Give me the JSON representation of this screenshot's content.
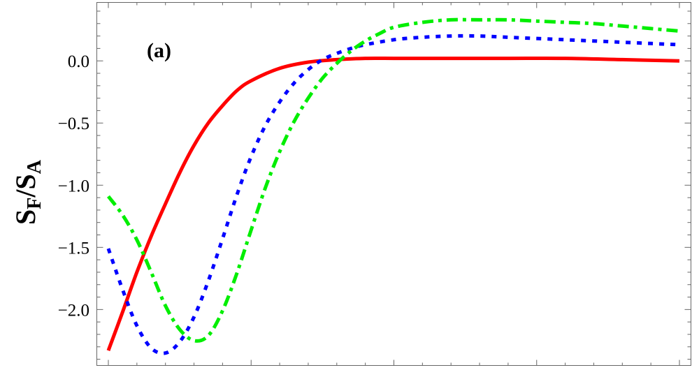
{
  "chart_data": {
    "type": "line",
    "panel_label": "(a)",
    "ylabel": {
      "main_1": "S",
      "sub_1": "F",
      "slash": "/",
      "main_2": "S",
      "sub_2": "A"
    },
    "xlabel": "",
    "xlim": [
      0,
      1
    ],
    "ylim": [
      -2.45,
      0.47
    ],
    "y_ticks": [
      0.0,
      -0.5,
      -1.0,
      -1.5,
      -2.0
    ],
    "y_tick_labels": [
      "0.0",
      "−0.5",
      "−1.0",
      "−1.5",
      "−2.0"
    ],
    "x_major_ticks": [
      0,
      0.25,
      0.5,
      0.75,
      1.0
    ],
    "x_minor_ticks": [
      0.05,
      0.1,
      0.15,
      0.2,
      0.3,
      0.35,
      0.4,
      0.45,
      0.55,
      0.6,
      0.65,
      0.7,
      0.8,
      0.85,
      0.9,
      0.95
    ],
    "grid": false,
    "legend": "none",
    "series": [
      {
        "color": "#ff0000",
        "style": "solid",
        "x": [
          0,
          0.025,
          0.05,
          0.075,
          0.1,
          0.125,
          0.15,
          0.175,
          0.2,
          0.225,
          0.25,
          0.3,
          0.35,
          0.4,
          0.45,
          0.5,
          0.55,
          0.6,
          0.7,
          0.8,
          0.9,
          1.0
        ],
        "y": [
          -2.33,
          -2.02,
          -1.7,
          -1.41,
          -1.15,
          -0.9,
          -0.68,
          -0.5,
          -0.36,
          -0.24,
          -0.16,
          -0.06,
          -0.01,
          0.01,
          0.02,
          0.02,
          0.02,
          0.02,
          0.02,
          0.02,
          0.01,
          0.0
        ]
      },
      {
        "color": "#0000ff",
        "style": "dotted",
        "x": [
          0,
          0.025,
          0.05,
          0.075,
          0.1,
          0.125,
          0.15,
          0.175,
          0.2,
          0.225,
          0.25,
          0.275,
          0.3,
          0.325,
          0.35,
          0.375,
          0.4,
          0.425,
          0.45,
          0.5,
          0.55,
          0.6,
          0.65,
          0.7,
          0.75,
          0.8,
          0.85,
          0.9,
          0.95,
          1.0
        ],
        "y": [
          -1.51,
          -1.84,
          -2.13,
          -2.31,
          -2.35,
          -2.26,
          -2.06,
          -1.77,
          -1.43,
          -1.08,
          -0.77,
          -0.52,
          -0.33,
          -0.18,
          -0.07,
          0.01,
          0.06,
          0.1,
          0.13,
          0.17,
          0.19,
          0.2,
          0.2,
          0.19,
          0.18,
          0.17,
          0.16,
          0.15,
          0.14,
          0.13
        ]
      },
      {
        "color": "#00ee00",
        "style": "dashdot",
        "x": [
          0,
          0.025,
          0.05,
          0.075,
          0.1,
          0.125,
          0.15,
          0.175,
          0.2,
          0.225,
          0.25,
          0.275,
          0.3,
          0.325,
          0.35,
          0.375,
          0.4,
          0.425,
          0.45,
          0.475,
          0.5,
          0.55,
          0.6,
          0.65,
          0.7,
          0.75,
          0.8,
          0.85,
          0.9,
          0.95,
          1.0
        ],
        "y": [
          -1.09,
          -1.24,
          -1.44,
          -1.7,
          -1.97,
          -2.16,
          -2.25,
          -2.21,
          -2.01,
          -1.71,
          -1.36,
          -1.02,
          -0.73,
          -0.49,
          -0.3,
          -0.14,
          -0.02,
          0.08,
          0.16,
          0.22,
          0.27,
          0.31,
          0.33,
          0.33,
          0.33,
          0.32,
          0.31,
          0.3,
          0.28,
          0.26,
          0.24
        ]
      }
    ]
  }
}
